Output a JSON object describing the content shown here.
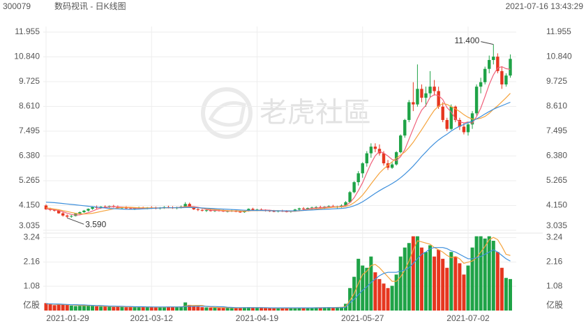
{
  "header": {
    "code": "300079",
    "title": "数码视讯 - 日K线图",
    "timestamp": "2021-07-16 13:43:29"
  },
  "watermark": "老虎社區",
  "chart_data": {
    "type": "candlestick",
    "up_color": "#1fa347",
    "down_color": "#e6361f",
    "categories": [
      "2021-01-29",
      null,
      null,
      null,
      null,
      null,
      null,
      null,
      null,
      null,
      null,
      null,
      null,
      null,
      null,
      null,
      null,
      null,
      null,
      null,
      null,
      null,
      null,
      null,
      null,
      "2021-03-12",
      null,
      null,
      null,
      null,
      null,
      null,
      null,
      null,
      null,
      null,
      null,
      null,
      null,
      null,
      null,
      null,
      null,
      null,
      null,
      null,
      null,
      null,
      null,
      null,
      "2021-04-19",
      null,
      null,
      null,
      null,
      null,
      null,
      null,
      null,
      null,
      null,
      null,
      null,
      null,
      null,
      null,
      null,
      null,
      null,
      null,
      null,
      null,
      null,
      null,
      null,
      "2021-05-27",
      null,
      null,
      null,
      null,
      null,
      null,
      null,
      null,
      null,
      null,
      null,
      null,
      null,
      null,
      null,
      null,
      null,
      null,
      null,
      null,
      null,
      null,
      null,
      null,
      "2021-07-02",
      null,
      null,
      null,
      null,
      null,
      null,
      null,
      null,
      null,
      null
    ],
    "open": [
      4.15,
      3.98,
      3.95,
      3.92,
      3.8,
      3.7,
      3.65,
      3.68,
      3.78,
      3.85,
      3.92,
      4.0,
      4.08,
      4.05,
      4.1,
      4.08,
      4.12,
      4.1,
      4.04,
      4.06,
      4.02,
      4.0,
      4.03,
      4.05,
      4.02,
      4.06,
      4.04,
      4.02,
      4.05,
      4.08,
      4.06,
      4.03,
      4.07,
      4.1,
      4.22,
      4.08,
      3.98,
      3.95,
      3.92,
      3.94,
      3.9,
      3.93,
      3.92,
      3.88,
      3.9,
      3.92,
      3.87,
      3.85,
      3.9,
      4.0,
      3.95,
      3.97,
      3.94,
      3.92,
      3.9,
      3.88,
      3.91,
      3.89,
      3.87,
      3.9,
      3.97,
      4.02,
      4.0,
      4.04,
      4.06,
      4.08,
      4.05,
      4.1,
      4.12,
      4.08,
      4.11,
      4.15,
      4.3,
      4.75,
      5.2,
      5.6,
      6.05,
      6.5,
      6.8,
      6.7,
      6.5,
      6.05,
      5.85,
      6.0,
      6.55,
      7.3,
      8.0,
      8.8,
      8.7,
      9.4,
      9.0,
      9.2,
      9.5,
      9.3,
      8.6,
      8.0,
      7.6,
      8.6,
      8.0,
      7.7,
      7.45,
      7.8,
      8.3,
      9.5,
      9.7,
      10.3,
      10.7,
      10.85,
      10.2,
      9.6,
      10.0
    ],
    "high": [
      4.2,
      4.05,
      4.0,
      3.98,
      3.85,
      3.75,
      3.72,
      3.8,
      3.88,
      3.95,
      4.02,
      4.12,
      4.15,
      4.12,
      4.16,
      4.15,
      4.18,
      4.15,
      4.1,
      4.12,
      4.08,
      4.06,
      4.1,
      4.1,
      4.08,
      4.12,
      4.1,
      4.08,
      4.12,
      4.14,
      4.12,
      4.1,
      4.15,
      4.3,
      4.28,
      4.12,
      4.04,
      4.0,
      3.98,
      3.98,
      3.96,
      3.98,
      3.96,
      3.94,
      3.96,
      3.96,
      3.92,
      3.92,
      4.02,
      4.05,
      4.0,
      4.02,
      3.98,
      3.96,
      3.95,
      3.94,
      3.96,
      3.94,
      3.92,
      4.0,
      4.05,
      4.08,
      4.06,
      4.1,
      4.12,
      4.14,
      4.12,
      4.16,
      4.18,
      4.14,
      4.2,
      4.35,
      4.8,
      5.25,
      5.7,
      6.1,
      6.6,
      6.95,
      6.95,
      6.9,
      6.6,
      6.2,
      6.1,
      6.6,
      7.35,
      8.05,
      8.9,
      9.7,
      10.5,
      9.6,
      9.5,
      10.2,
      9.8,
      9.5,
      8.8,
      8.1,
      8.7,
      8.65,
      8.1,
      7.85,
      7.9,
      8.4,
      9.6,
      9.9,
      10.4,
      10.9,
      11.4,
      11.0,
      10.4,
      10.1,
      10.95
    ],
    "low": [
      3.95,
      3.9,
      3.88,
      3.78,
      3.65,
      3.59,
      3.6,
      3.66,
      3.75,
      3.82,
      3.88,
      3.96,
      4.0,
      4.0,
      4.04,
      4.02,
      4.05,
      4.0,
      3.98,
      4.0,
      3.96,
      3.95,
      3.98,
      4.0,
      3.98,
      4.0,
      3.98,
      3.97,
      4.0,
      4.02,
      4.0,
      3.98,
      4.02,
      4.08,
      4.05,
      3.95,
      3.9,
      3.88,
      3.86,
      3.88,
      3.86,
      3.88,
      3.86,
      3.84,
      3.86,
      3.85,
      3.82,
      3.82,
      3.88,
      3.92,
      3.9,
      3.92,
      3.88,
      3.86,
      3.85,
      3.84,
      3.86,
      3.84,
      3.83,
      3.88,
      3.93,
      3.96,
      3.95,
      3.98,
      4.0,
      4.02,
      4.0,
      4.04,
      4.06,
      4.02,
      4.05,
      4.1,
      4.28,
      4.7,
      5.05,
      5.4,
      5.9,
      6.3,
      6.55,
      6.4,
      5.95,
      5.75,
      5.8,
      5.95,
      6.5,
      7.2,
      7.9,
      8.4,
      8.6,
      8.8,
      8.6,
      9.0,
      9.1,
      8.5,
      7.9,
      7.5,
      7.55,
      7.9,
      7.55,
      7.35,
      7.3,
      7.6,
      8.2,
      9.2,
      9.6,
      10.1,
      10.5,
      10.1,
      9.4,
      9.5,
      9.9
    ],
    "close": [
      3.98,
      3.95,
      3.92,
      3.8,
      3.7,
      3.65,
      3.68,
      3.78,
      3.85,
      3.92,
      4.0,
      4.08,
      4.05,
      4.1,
      4.08,
      4.12,
      4.1,
      4.04,
      4.06,
      4.02,
      4.0,
      4.03,
      4.05,
      4.02,
      4.06,
      4.04,
      4.02,
      4.05,
      4.08,
      4.06,
      4.03,
      4.07,
      4.1,
      4.22,
      4.08,
      3.98,
      3.95,
      3.92,
      3.94,
      3.9,
      3.93,
      3.92,
      3.88,
      3.9,
      3.92,
      3.87,
      3.85,
      3.9,
      4.0,
      3.95,
      3.97,
      3.94,
      3.92,
      3.9,
      3.88,
      3.91,
      3.89,
      3.87,
      3.9,
      3.97,
      4.02,
      4.0,
      4.04,
      4.06,
      4.08,
      4.05,
      4.1,
      4.12,
      4.08,
      4.11,
      4.15,
      4.3,
      4.75,
      5.2,
      5.6,
      6.05,
      6.5,
      6.8,
      6.7,
      6.5,
      6.05,
      5.85,
      6.0,
      6.55,
      7.3,
      8.0,
      8.8,
      8.7,
      9.4,
      9.0,
      9.2,
      9.5,
      9.3,
      8.6,
      8.0,
      7.6,
      8.6,
      8.0,
      7.7,
      7.45,
      7.8,
      8.3,
      9.5,
      9.7,
      10.3,
      10.7,
      10.85,
      10.2,
      9.6,
      10.0,
      10.75
    ],
    "volume": [
      0.33,
      0.28,
      0.24,
      0.26,
      0.27,
      0.25,
      0.22,
      0.2,
      0.21,
      0.23,
      0.24,
      0.2,
      0.19,
      0.18,
      0.2,
      0.17,
      0.16,
      0.18,
      0.17,
      0.15,
      0.16,
      0.18,
      0.17,
      0.16,
      0.15,
      0.14,
      0.15,
      0.16,
      0.15,
      0.17,
      0.16,
      0.15,
      0.18,
      0.36,
      0.25,
      0.2,
      0.17,
      0.15,
      0.14,
      0.13,
      0.13,
      0.12,
      0.12,
      0.13,
      0.12,
      0.11,
      0.12,
      0.14,
      0.15,
      0.13,
      0.12,
      0.11,
      0.12,
      0.11,
      0.1,
      0.11,
      0.12,
      0.11,
      0.1,
      0.12,
      0.13,
      0.14,
      0.12,
      0.11,
      0.13,
      0.12,
      0.14,
      0.15,
      0.13,
      0.14,
      0.16,
      0.3,
      1.0,
      1.5,
      2.3,
      2.0,
      1.9,
      2.4,
      1.7,
      1.4,
      1.2,
      1.0,
      1.1,
      1.6,
      2.4,
      2.8,
      3.0,
      3.3,
      3.3,
      2.8,
      2.6,
      2.9,
      2.4,
      2.7,
      2.3,
      1.9,
      2.6,
      2.4,
      2.1,
      1.6,
      2.0,
      2.8,
      3.3,
      3.3,
      3.2,
      3.3,
      3.1,
      2.6,
      1.9,
      1.45,
      1.4
    ],
    "ma_series": [
      {
        "color": "#f0607a",
        "values": [
          4.0,
          3.98,
          3.96,
          3.92,
          3.87,
          3.8,
          3.75,
          3.72,
          3.73,
          3.78,
          3.83,
          3.9,
          3.98,
          4.04,
          4.06,
          4.09,
          4.09,
          4.09,
          4.08,
          4.07,
          4.05,
          4.03,
          4.03,
          4.03,
          4.04,
          4.04,
          4.04,
          4.04,
          4.05,
          4.05,
          4.05,
          4.06,
          4.07,
          4.1,
          4.11,
          4.1,
          4.07,
          4.03,
          3.97,
          3.94,
          3.93,
          3.92,
          3.91,
          3.9,
          3.9,
          3.9,
          3.89,
          3.89,
          3.91,
          3.92,
          3.93,
          3.94,
          3.95,
          3.94,
          3.92,
          3.91,
          3.9,
          3.89,
          3.89,
          3.89,
          3.91,
          3.95,
          3.99,
          4.02,
          4.04,
          4.05,
          4.07,
          4.08,
          4.09,
          4.09,
          4.11,
          4.15,
          4.28,
          4.5,
          4.82,
          5.18,
          5.62,
          6.04,
          6.39,
          6.59,
          6.51,
          6.38,
          6.22,
          6.17,
          6.35,
          6.67,
          7.14,
          7.61,
          8.07,
          8.44,
          8.66,
          9.02,
          9.14,
          9.1,
          8.92,
          8.56,
          8.36,
          8.04,
          7.92,
          7.87,
          7.91,
          7.85,
          8.15,
          8.53,
          9.05,
          9.6,
          10.03,
          10.34,
          10.4,
          10.31,
          10.28
        ]
      },
      {
        "color": "#f5a33c",
        "values": [
          4.05,
          4.02,
          3.99,
          3.96,
          3.92,
          3.88,
          3.84,
          3.8,
          3.78,
          3.77,
          3.78,
          3.8,
          3.84,
          3.88,
          3.92,
          3.96,
          4.0,
          4.04,
          4.06,
          4.07,
          4.07,
          4.06,
          4.05,
          4.05,
          4.04,
          4.04,
          4.04,
          4.04,
          4.04,
          4.05,
          4.05,
          4.05,
          4.06,
          4.08,
          4.08,
          4.07,
          4.05,
          4.03,
          4.01,
          3.99,
          3.97,
          3.95,
          3.93,
          3.92,
          3.91,
          3.91,
          3.9,
          3.9,
          3.91,
          3.92,
          3.92,
          3.92,
          3.92,
          3.92,
          3.92,
          3.92,
          3.91,
          3.91,
          3.9,
          3.9,
          3.91,
          3.93,
          3.95,
          3.97,
          3.99,
          4.01,
          4.03,
          4.05,
          4.07,
          4.08,
          4.09,
          4.11,
          4.17,
          4.28,
          4.43,
          4.62,
          4.86,
          5.12,
          5.37,
          5.61,
          5.8,
          5.96,
          6.12,
          6.28,
          6.42,
          6.56,
          6.76,
          7.0,
          7.28,
          7.56,
          7.86,
          8.16,
          8.44,
          8.62,
          8.74,
          8.7,
          8.6,
          8.5,
          8.38,
          8.24,
          8.12,
          8.04,
          8.04,
          8.08,
          8.16,
          8.3,
          8.48,
          8.64,
          8.82,
          9.0,
          9.2
        ]
      },
      {
        "color": "#3d8fdc",
        "values": [
          4.3,
          4.29,
          4.28,
          4.26,
          4.24,
          4.22,
          4.2,
          4.18,
          4.16,
          4.14,
          4.12,
          4.1,
          4.08,
          4.06,
          4.04,
          4.02,
          4.01,
          4.0,
          3.99,
          3.98,
          3.98,
          3.98,
          3.99,
          4.0,
          4.01,
          4.02,
          4.03,
          4.04,
          4.05,
          4.05,
          4.05,
          4.05,
          4.05,
          4.06,
          4.06,
          4.06,
          4.05,
          4.04,
          4.03,
          4.02,
          4.01,
          4.0,
          3.99,
          3.98,
          3.97,
          3.96,
          3.95,
          3.94,
          3.93,
          3.93,
          3.93,
          3.93,
          3.92,
          3.92,
          3.91,
          3.91,
          3.91,
          3.91,
          3.91,
          3.91,
          3.92,
          3.93,
          3.94,
          3.95,
          3.96,
          3.97,
          3.98,
          3.99,
          4.0,
          4.01,
          4.02,
          4.04,
          4.08,
          4.14,
          4.22,
          4.32,
          4.44,
          4.57,
          4.7,
          4.82,
          4.93,
          5.03,
          5.14,
          5.26,
          5.4,
          5.56,
          5.74,
          5.93,
          6.14,
          6.36,
          6.56,
          6.76,
          6.94,
          7.1,
          7.24,
          7.36,
          7.5,
          7.62,
          7.72,
          7.8,
          7.88,
          7.95,
          8.05,
          8.15,
          8.27,
          8.38,
          8.48,
          8.57,
          8.64,
          8.72,
          8.8
        ]
      }
    ],
    "volume_ma_series": [
      {
        "color": "#f5a33c",
        "values": [
          0.3,
          0.29,
          0.28,
          0.27,
          0.27,
          0.26,
          0.25,
          0.24,
          0.23,
          0.22,
          0.22,
          0.22,
          0.21,
          0.2,
          0.19,
          0.18,
          0.18,
          0.18,
          0.17,
          0.17,
          0.16,
          0.16,
          0.16,
          0.16,
          0.16,
          0.16,
          0.15,
          0.15,
          0.15,
          0.16,
          0.16,
          0.16,
          0.16,
          0.2,
          0.22,
          0.23,
          0.23,
          0.23,
          0.18,
          0.16,
          0.14,
          0.13,
          0.13,
          0.13,
          0.12,
          0.12,
          0.12,
          0.13,
          0.13,
          0.13,
          0.13,
          0.13,
          0.12,
          0.12,
          0.11,
          0.11,
          0.11,
          0.11,
          0.11,
          0.11,
          0.12,
          0.12,
          0.12,
          0.12,
          0.13,
          0.13,
          0.13,
          0.13,
          0.13,
          0.14,
          0.14,
          0.18,
          0.45,
          0.75,
          1.2,
          1.6,
          1.75,
          2.0,
          2.05,
          1.9,
          1.7,
          1.5,
          1.3,
          1.3,
          1.5,
          1.8,
          2.2,
          2.7,
          3.1,
          3.05,
          3.0,
          2.95,
          2.8,
          2.7,
          2.6,
          2.45,
          2.35,
          2.4,
          2.3,
          2.1,
          2.15,
          2.2,
          2.35,
          2.6,
          2.85,
          3.15,
          3.25,
          3.15,
          2.85,
          2.5,
          2.45
        ]
      },
      {
        "color": "#3d8fdc",
        "values": [
          0.3,
          0.3,
          0.29,
          0.29,
          0.28,
          0.27,
          0.26,
          0.26,
          0.25,
          0.25,
          0.24,
          0.23,
          0.22,
          0.22,
          0.21,
          0.2,
          0.2,
          0.19,
          0.19,
          0.18,
          0.18,
          0.17,
          0.17,
          0.17,
          0.16,
          0.16,
          0.16,
          0.16,
          0.16,
          0.16,
          0.16,
          0.16,
          0.16,
          0.18,
          0.19,
          0.19,
          0.2,
          0.19,
          0.19,
          0.18,
          0.18,
          0.17,
          0.17,
          0.15,
          0.14,
          0.13,
          0.13,
          0.13,
          0.13,
          0.13,
          0.13,
          0.13,
          0.13,
          0.12,
          0.12,
          0.12,
          0.12,
          0.12,
          0.12,
          0.12,
          0.12,
          0.12,
          0.12,
          0.12,
          0.12,
          0.12,
          0.13,
          0.13,
          0.13,
          0.13,
          0.13,
          0.15,
          0.35,
          0.5,
          0.7,
          0.9,
          1.05,
          1.25,
          1.4,
          1.55,
          1.65,
          1.7,
          1.7,
          1.7,
          1.75,
          1.8,
          1.9,
          2.1,
          2.3,
          2.5,
          2.6,
          2.75,
          2.8,
          2.8,
          2.8,
          2.75,
          2.65,
          2.6,
          2.5,
          2.4,
          2.3,
          2.3,
          2.35,
          2.4,
          2.5,
          2.6,
          2.7,
          2.6,
          2.45,
          2.3,
          2.2
        ]
      }
    ],
    "ylim": [
      3.035,
      11.955
    ],
    "yticks": [
      3.035,
      {
        "value": 4.15,
        "label": "4.150"
      },
      5.265,
      {
        "value": 6.38,
        "label": "6.380"
      },
      7.495,
      {
        "value": 8.61,
        "label": "8.610"
      },
      9.725,
      {
        "value": 10.84,
        "label": "10.840"
      },
      11.955
    ],
    "y2lim": [
      0,
      3.38
    ],
    "y2ticks": [
      {
        "value": 0,
        "label": "亿股"
      },
      1.08,
      2.16,
      3.24
    ],
    "grid": true,
    "annotations": [
      {
        "label": "11.400",
        "value": 11.4
      },
      {
        "label": "3.590",
        "value": 3.59
      }
    ]
  }
}
